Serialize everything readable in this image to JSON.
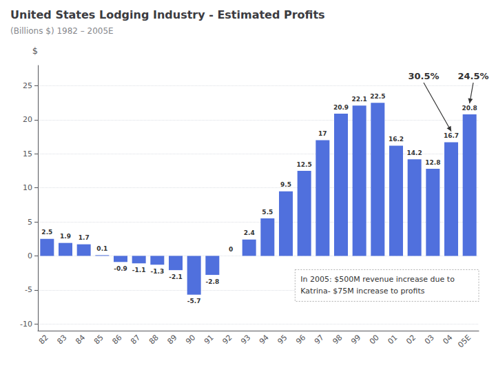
{
  "chart_data": {
    "type": "bar",
    "title": "United States Lodging Industry - Estimated Profits",
    "subtitle": "(Billions $) 1982 – 2005E",
    "ylabel": "$",
    "categories": [
      "82",
      "83",
      "84",
      "85",
      "86",
      "87",
      "88",
      "89",
      "90",
      "91",
      "92",
      "93",
      "94",
      "95",
      "96",
      "97",
      "98",
      "99",
      "00",
      "01",
      "02",
      "03",
      "04",
      "05E"
    ],
    "values": [
      2.5,
      1.9,
      1.7,
      0.1,
      -0.9,
      -1.1,
      -1.3,
      -2.1,
      -5.7,
      -2.8,
      0,
      2.4,
      5.5,
      9.5,
      12.5,
      17,
      20.9,
      22.1,
      22.5,
      16.2,
      14.2,
      12.8,
      16.7,
      20.8
    ],
    "ylim": [
      -11,
      28
    ],
    "yticks": [
      -10,
      -5,
      0,
      5,
      10,
      15,
      20,
      25
    ],
    "grid": true,
    "data_labels": true,
    "annotations": [
      {
        "text": "30.5%",
        "category": "04"
      },
      {
        "text": "24.5%",
        "category": "05E"
      },
      {
        "text": "In 2005: $500M revenue increase due to\nKatrina- $75M increase to profits"
      }
    ]
  }
}
